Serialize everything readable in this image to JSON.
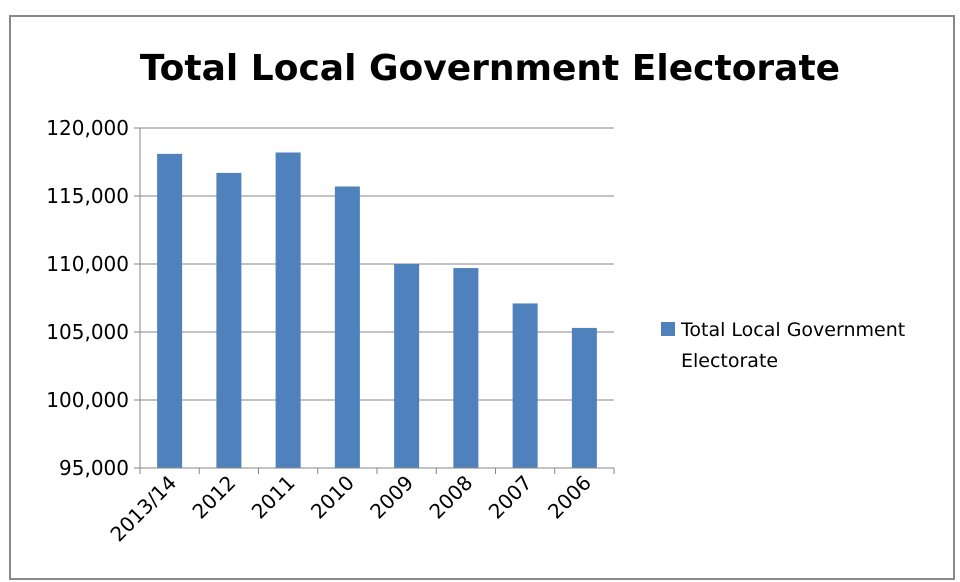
{
  "chart_data": {
    "type": "bar",
    "title": "Total Local Government Electorate",
    "categories": [
      "2013/14",
      "2012",
      "2011",
      "2010",
      "2009",
      "2008",
      "2007",
      "2006"
    ],
    "series": [
      {
        "name": "Total Local Government Electorate",
        "values": [
          118100,
          116700,
          118200,
          115700,
          110000,
          109700,
          107100,
          105300
        ],
        "color": "#4f81bd"
      }
    ],
    "ylim": [
      95000,
      120000
    ],
    "yticks": [
      "95,000",
      "100,000",
      "105,000",
      "110,000",
      "115,000",
      "120,000"
    ],
    "grid": true,
    "legend": {
      "position": "right",
      "lines": [
        "Total Local Government",
        "Electorate"
      ]
    }
  }
}
